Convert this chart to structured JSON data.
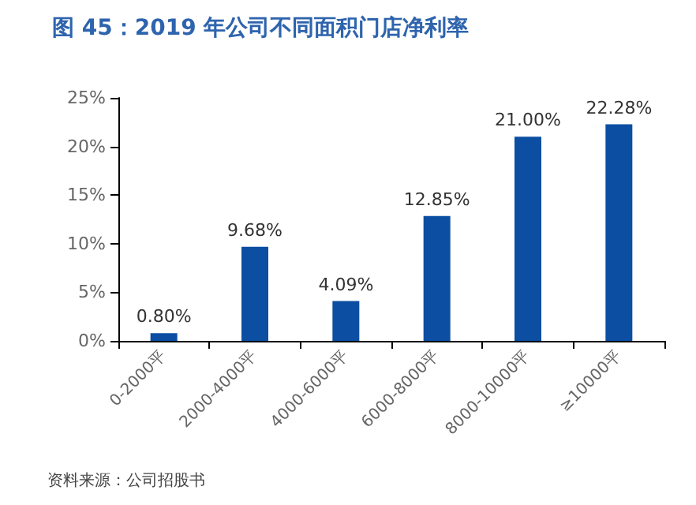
{
  "chart_data": {
    "type": "bar",
    "title": "图 45：2019 年公司不同面积门店净利率",
    "categories": [
      "0-2000平",
      "2000-4000平",
      "4000-6000平",
      "6000-8000平",
      "8000-10000平",
      "≥10000平"
    ],
    "values": [
      0.8,
      9.68,
      4.09,
      12.85,
      21.0,
      22.28
    ],
    "value_labels": [
      "0.80%",
      "9.68%",
      "4.09%",
      "12.85%",
      "21.00%",
      "22.28%"
    ],
    "color": "#0b4ea2",
    "ylim": [
      0,
      25
    ],
    "yticks": [
      {
        "value": 0,
        "label": "0%"
      },
      {
        "value": 5,
        "label": "5%"
      },
      {
        "value": 10,
        "label": "10%"
      },
      {
        "value": 15,
        "label": "15%"
      },
      {
        "value": 20,
        "label": "20%"
      },
      {
        "value": 25,
        "label": "25%"
      }
    ],
    "grid": false,
    "annotations": [
      "资料来源：公司招股书"
    ]
  }
}
